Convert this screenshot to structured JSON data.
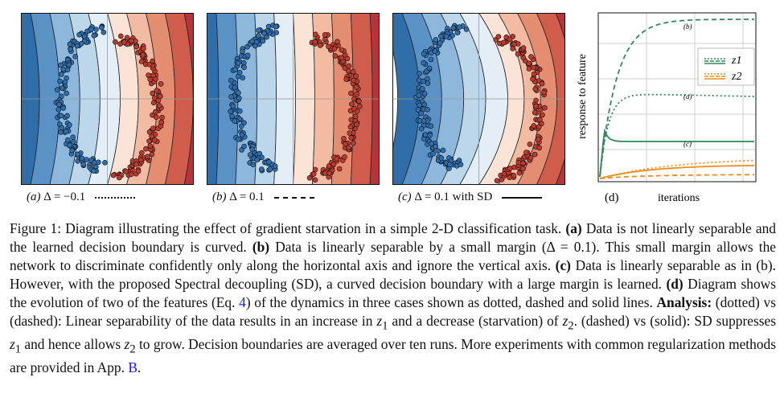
{
  "colors": {
    "blue_point": "#2c6fb0",
    "red_point": "#c0392b",
    "green": "#2e8b57",
    "orange": "#f28c1c",
    "link": "#1a1aff"
  },
  "panels": [
    {
      "letter": "(a)",
      "label": "Δ = −0.1",
      "line_style": "dotted"
    },
    {
      "letter": "(b)",
      "label": "Δ = 0.1",
      "line_style": "dashed"
    },
    {
      "letter": "(c)",
      "label": "Δ = 0.1 with SD",
      "line_style": "solid"
    }
  ],
  "chart_d": {
    "letter": "(d)",
    "xlabel": "iterations",
    "ylabel": "response to feature",
    "legend": [
      "z1",
      "z2"
    ],
    "annotations": [
      "(b)",
      "(a)",
      "(c)"
    ],
    "chart_data": {
      "type": "line",
      "xlabel": "iterations",
      "ylabel": "response to feature",
      "legend_position": "top-right",
      "grid": true,
      "series": [
        {
          "name": "z1",
          "style": "dashed",
          "case": "(b)",
          "trend": "rises quickly then saturates at the top"
        },
        {
          "name": "z1",
          "style": "dotted",
          "case": "(a)",
          "trend": "rises then flat at mid-height"
        },
        {
          "name": "z1",
          "style": "solid",
          "case": "(c)",
          "trend": "spike then flat at lower level"
        },
        {
          "name": "z2",
          "style": "dotted",
          "case": "(a)",
          "trend": "slow rise near bottom"
        },
        {
          "name": "z2",
          "style": "solid",
          "case": "(c)",
          "trend": "slow rise near bottom"
        },
        {
          "name": "z2",
          "style": "dashed",
          "case": "(b)",
          "trend": "stays near zero"
        }
      ]
    }
  },
  "caption": {
    "prefix": "Figure 1: Diagram illustrating the effect of gradient starvation in a simple 2-D classification task. ",
    "a_tag": "(a)",
    "a_text": " Data is not linearly separable and the learned decision boundary is curved. ",
    "b_tag": "(b)",
    "b_text": " Data is linearly separable by a small margin (Δ = 0.1). This small margin allows the network to discriminate confidently only along the horizontal axis and ignore the vertical axis. ",
    "c_tag": "(c)",
    "c_text": " Data is linearly separable as in (b). However, with the proposed Spectral decoupling (SD), a curved decision boundary with a large margin is learned. ",
    "d_tag": "(d)",
    "d_text1": " Diagram shows the evolution of two of the features (Eq. ",
    "eq_ref": "4",
    "d_text2": ") of the dynamics in three cases shown as dotted, dashed and solid lines. ",
    "analysis_tag": "Analysis:",
    "analysis_1": " (dotted) vs (dashed): Linear separability of the data results in an increase in ",
    "z1": "z",
    "sub1": "1",
    "analysis_2": " and a decrease (starvation) of ",
    "z2": "z",
    "sub2": "2",
    "analysis_3": ". (dashed) vs (solid): SD suppresses ",
    "z1b": "z",
    "sub1b": "1",
    "analysis_4": " and hence allows ",
    "z2b": "z",
    "sub2b": "2",
    "analysis_5": " to grow. Decision boundaries are averaged over ten runs. More experiments with common regularization methods are provided in App. ",
    "app_ref": "B",
    "end": "."
  }
}
